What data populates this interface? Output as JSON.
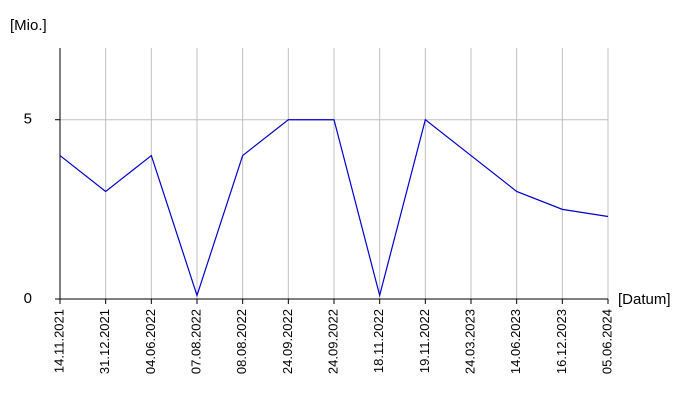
{
  "chart_data": {
    "type": "line",
    "y_label": "[Mio.]",
    "x_label": "[Datum]",
    "categories": [
      "14.11.2021",
      "31.12.2021",
      "04.06.2022",
      "07.08.2022",
      "08.08.2022",
      "24.09.2022",
      "24.09.2022",
      "18.11.2022",
      "19.11.2022",
      "24.03.2023",
      "14.06.2023",
      "16.12.2023",
      "05.06.2024"
    ],
    "series": [
      {
        "color": "#0000cc",
        "values": [
          4,
          3,
          4,
          0.1,
          4,
          5,
          5,
          0.1,
          5,
          4,
          3,
          2.5,
          2.3
        ]
      }
    ],
    "ylim": [
      0,
      7
    ],
    "yticks": [
      0,
      5
    ],
    "grid": true
  }
}
